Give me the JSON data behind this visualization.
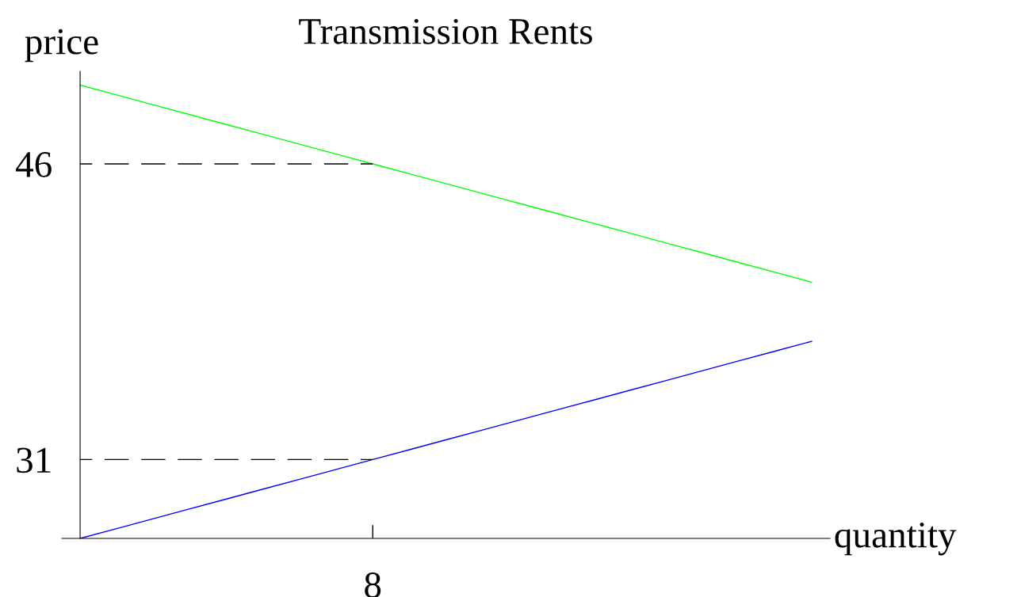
{
  "chart_data": {
    "type": "line",
    "title": "Transmission Rents",
    "xlabel": "quantity",
    "ylabel": "price",
    "categories": [
      null,
      null,
      null,
      null,
      null,
      null,
      null,
      null,
      "8",
      null,
      null,
      null,
      null,
      null,
      null,
      null,
      null,
      null,
      null,
      null,
      null
    ],
    "ylim": [
      27,
      50.7
    ],
    "yticks": [
      31,
      46
    ],
    "grid": false,
    "legend": false,
    "marker": "none",
    "series": [
      {
        "values": [
          50,
          49.5,
          49,
          48.5,
          48,
          47.5,
          47,
          46.5,
          46,
          45.5,
          45,
          44.5,
          44,
          43.5,
          43,
          42.5,
          42,
          41.5,
          41,
          40.5,
          40
        ],
        "color": "#00ff00",
        "line_style": "solid"
      },
      {
        "values": [
          27,
          27.5,
          28,
          28.5,
          29,
          29.5,
          30,
          30.5,
          31,
          31.5,
          32,
          32.5,
          33,
          33.5,
          34,
          34.5,
          35,
          35.5,
          36,
          36.5,
          37
        ],
        "color": "#0000ff",
        "line_style": "solid"
      },
      {
        "values": [
          46,
          46,
          46,
          46,
          46,
          46,
          46,
          46,
          46,
          null,
          null,
          null,
          null,
          null,
          null,
          null,
          null,
          null,
          null,
          null,
          null
        ],
        "color": "#000000",
        "line_style": "dashed"
      },
      {
        "values": [
          31,
          31,
          31,
          31,
          31,
          31,
          31,
          31,
          31,
          null,
          null,
          null,
          null,
          null,
          null,
          null,
          null,
          null,
          null,
          null,
          null
        ],
        "color": "#000000",
        "line_style": "dashed"
      }
    ]
  }
}
